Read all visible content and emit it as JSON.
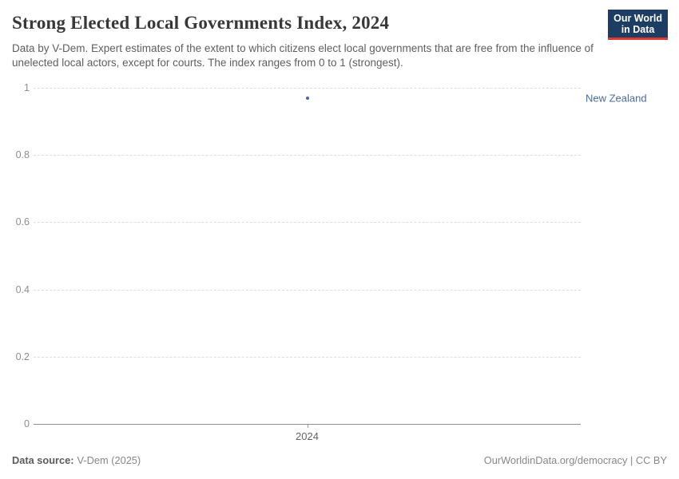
{
  "header": {
    "title": "Strong Elected Local Governments Index, 2024",
    "subtitle": "Data by V-Dem. Expert estimates of the extent to which citizens elect local governments that are free from the influence of unelected local actors, except for courts. The index ranges from 0 to 1 (strongest).",
    "logo": {
      "line1": "Our World",
      "line2": "in Data",
      "bg_color": "#1d3d63",
      "accent_color": "#dc3a34"
    }
  },
  "chart_data": {
    "type": "scatter",
    "title": "Strong Elected Local Governments Index, 2024",
    "x": [
      2024
    ],
    "series": [
      {
        "name": "New Zealand",
        "values": [
          0.97
        ],
        "color": "#4c6a9c"
      }
    ],
    "xlabel": "",
    "ylabel": "",
    "ylim": [
      0,
      1
    ],
    "yticks": [
      0,
      0.2,
      0.4,
      0.6,
      0.8,
      1
    ],
    "ytick_labels": [
      "0",
      "0.2",
      "0.4",
      "0.6",
      "0.8",
      "1"
    ],
    "xticks": [
      2024
    ],
    "xtick_labels": [
      "2024"
    ],
    "grid": "horizontal-dashed",
    "legend_position": "label-right-of-point"
  },
  "footer": {
    "datasource_label": "Data source:",
    "datasource_value": "V-Dem (2025)",
    "link_text": "OurWorldinData.org/democracy | CC BY"
  },
  "colors": {
    "title_text": "#383838",
    "subtitle_text": "#5e5e5e",
    "ytick_label": "#8e8e8e",
    "xtick_label": "#636363",
    "gridline": "#dedede",
    "axis_line": "#8f8f8f",
    "entity_blue": "#4c6a9c",
    "footer_text": "#878787"
  }
}
